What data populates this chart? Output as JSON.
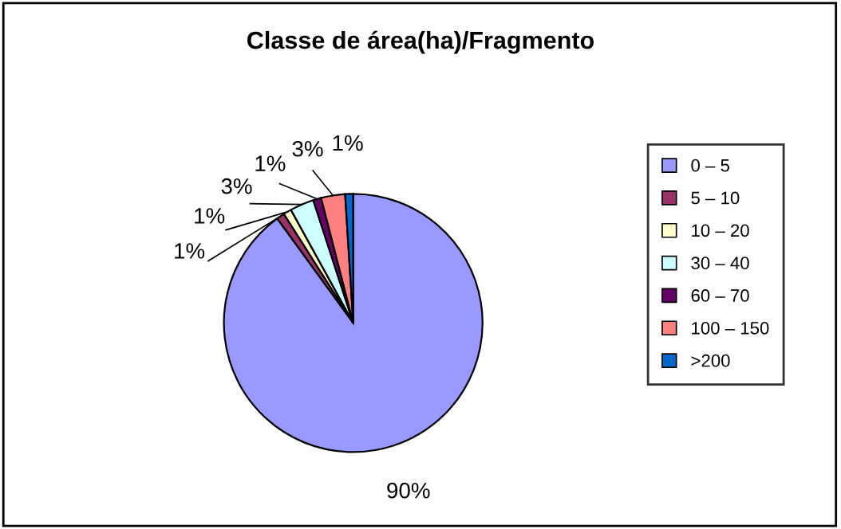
{
  "chart_data": {
    "type": "pie",
    "title": "Classe de área(ha)/Fragmento",
    "categories": [
      "0 – 5",
      "5 – 10",
      "10 – 20",
      "30 – 40",
      "60 – 70",
      "100 – 150",
      ">200"
    ],
    "values": [
      90,
      1,
      1,
      3,
      1,
      3,
      1
    ],
    "colors": [
      "#9999ff",
      "#993366",
      "#ffffcc",
      "#ccffff",
      "#660066",
      "#ff8080",
      "#0066cc"
    ],
    "value_labels": [
      "90%",
      "1%",
      "1%",
      "3%",
      "1%",
      "3%",
      "1%"
    ],
    "legend": "right"
  }
}
